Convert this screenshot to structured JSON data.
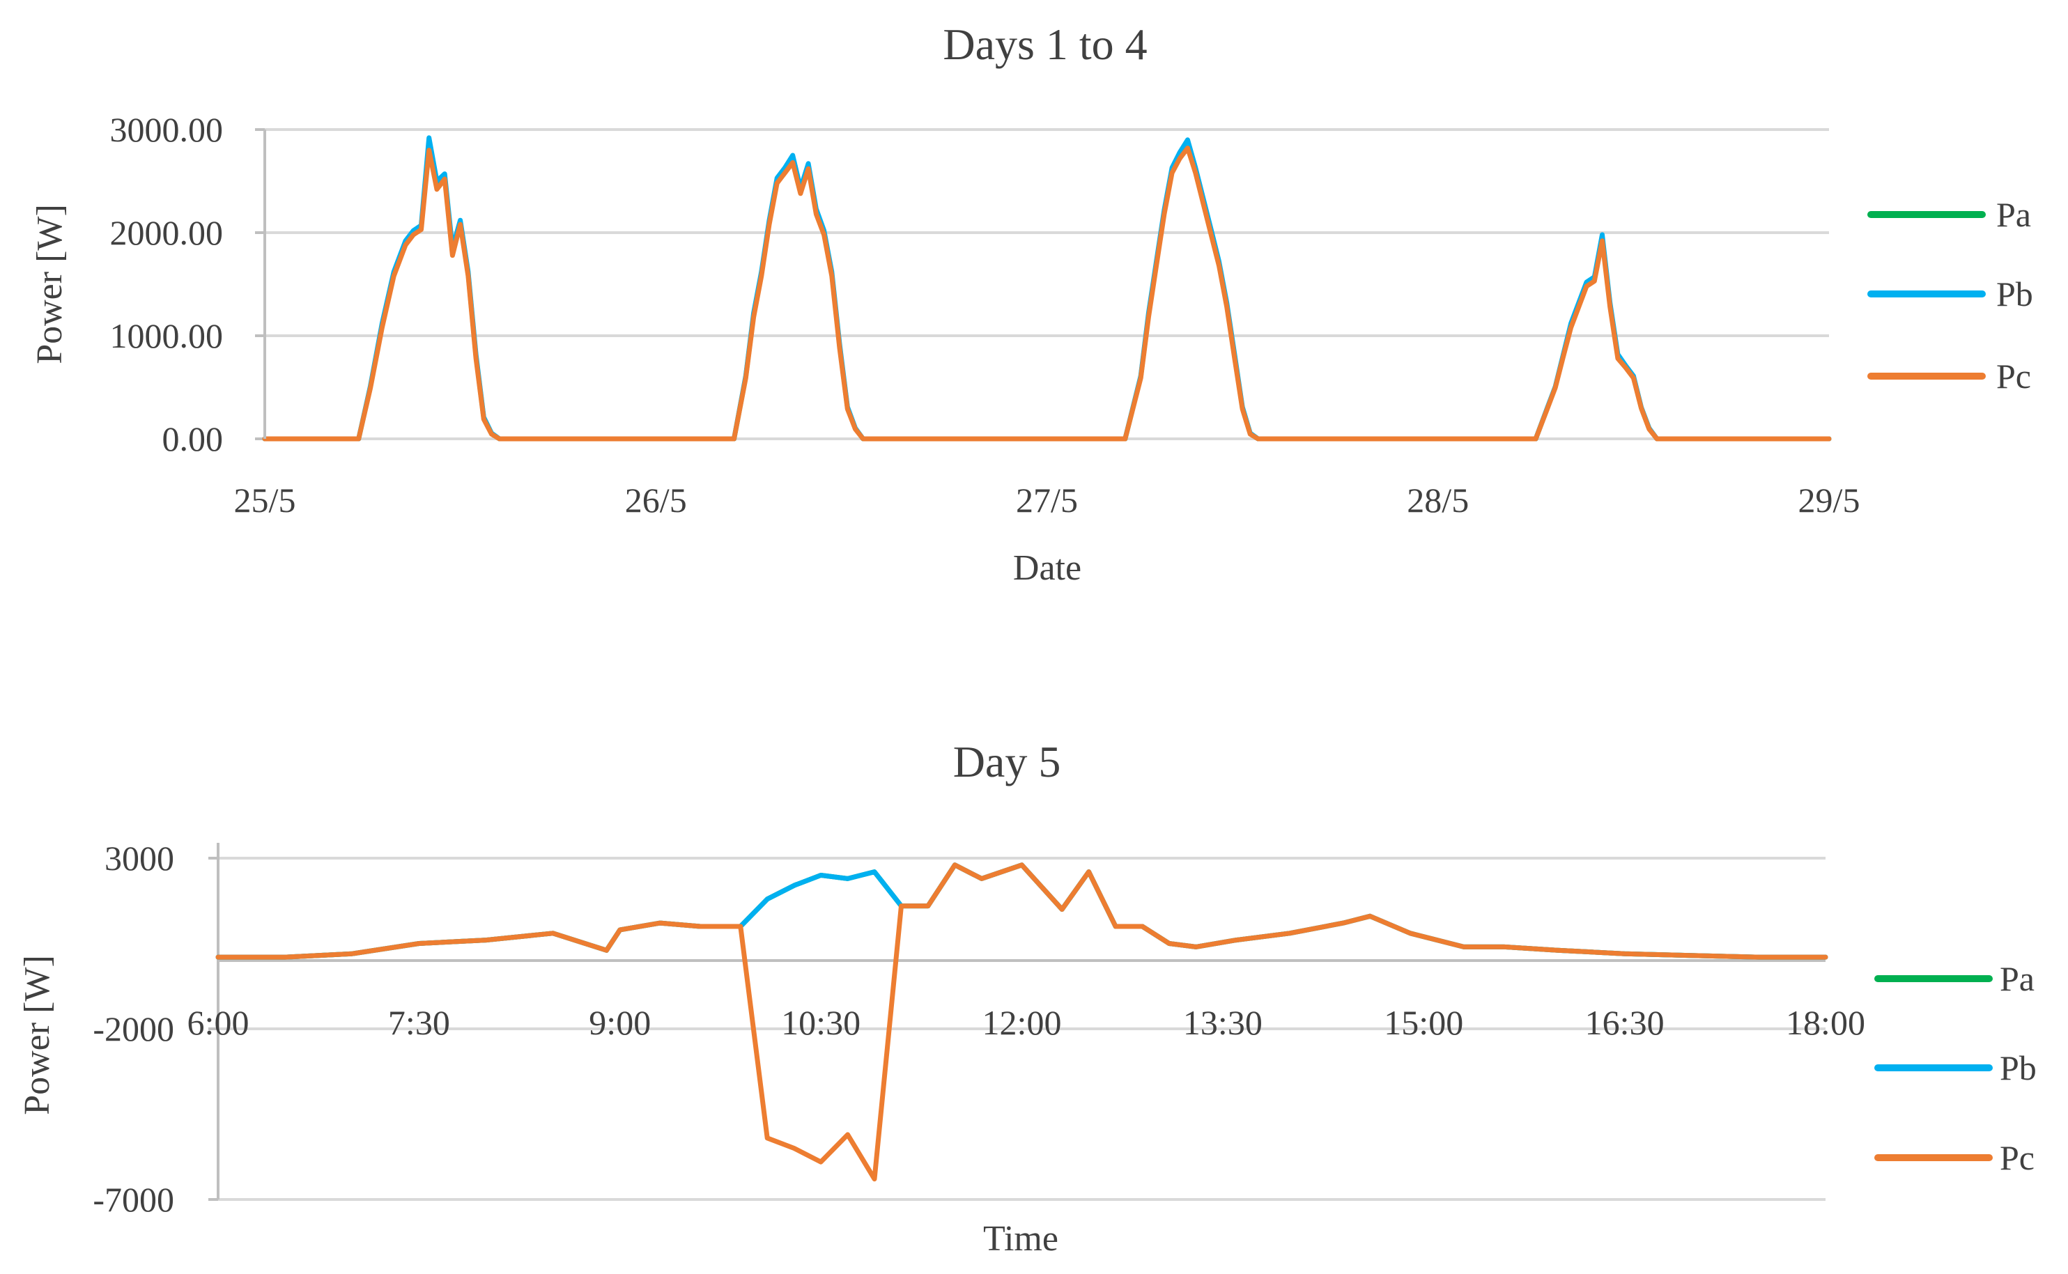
{
  "chart_data": [
    {
      "type": "line",
      "title": "Days 1 to 4",
      "xlabel": "Date",
      "ylabel": "Power [W]",
      "xlim": [
        0,
        4
      ],
      "ylim": [
        0,
        3000
      ],
      "grid": true,
      "legend_position": "right",
      "x_ticks": [
        {
          "value": 0,
          "label": "25/5"
        },
        {
          "value": 1,
          "label": "26/5"
        },
        {
          "value": 2,
          "label": "27/5"
        },
        {
          "value": 3,
          "label": "28/5"
        },
        {
          "value": 4,
          "label": "29/5"
        }
      ],
      "y_ticks": [
        {
          "value": 0,
          "label": "0.00"
        },
        {
          "value": 1000,
          "label": "1000.00"
        },
        {
          "value": 2000,
          "label": "2000.00"
        },
        {
          "value": 3000,
          "label": "3000.00"
        }
      ],
      "series": [
        {
          "name": "Pa",
          "color": "#00b050"
        },
        {
          "name": "Pb",
          "color": "#00b0f0"
        },
        {
          "name": "Pc",
          "color": "#ed7d31"
        }
      ],
      "x": [
        0,
        0.24,
        0.27,
        0.3,
        0.33,
        0.36,
        0.38,
        0.4,
        0.42,
        0.44,
        0.46,
        0.48,
        0.5,
        0.52,
        0.54,
        0.56,
        0.58,
        0.6,
        0.62,
        0.64,
        0.66,
        0.68,
        0.7,
        0.73,
        1.2,
        1.23,
        1.25,
        1.27,
        1.29,
        1.31,
        1.33,
        1.35,
        1.37,
        1.39,
        1.41,
        1.43,
        1.45,
        1.47,
        1.49,
        1.51,
        1.53,
        1.55,
        1.57,
        1.59,
        1.61,
        1.63,
        1.66,
        1.7,
        2.2,
        2.24,
        2.26,
        2.28,
        2.3,
        2.32,
        2.34,
        2.36,
        2.38,
        2.4,
        2.42,
        2.44,
        2.46,
        2.48,
        2.5,
        2.52,
        2.54,
        2.56,
        2.58,
        2.6,
        2.62,
        2.64,
        2.68,
        2.72,
        3.25,
        3.28,
        3.3,
        3.32,
        3.34,
        3.36,
        3.38,
        3.4,
        3.42,
        3.44,
        3.46,
        3.48,
        3.5,
        3.52,
        3.54,
        3.56,
        3.58,
        3.6,
        3.62,
        3.64,
        3.66,
        3.7,
        4
      ],
      "values": {
        "Pa": [
          0,
          0,
          500,
          1100,
          1600,
          1900,
          2000,
          2050,
          2850,
          2450,
          2550,
          1800,
          2100,
          1600,
          800,
          200,
          50,
          0,
          0,
          0,
          0,
          0,
          0,
          0,
          0,
          600,
          1200,
          1600,
          2100,
          2500,
          2600,
          2700,
          2400,
          2650,
          2200,
          2000,
          1600,
          900,
          300,
          100,
          0,
          0,
          0,
          0,
          0,
          0,
          0,
          0,
          0,
          600,
          1200,
          1700,
          2200,
          2600,
          2750,
          2850,
          2600,
          2300,
          2000,
          1700,
          1300,
          800,
          300,
          50,
          0,
          0,
          0,
          0,
          0,
          0,
          0,
          0,
          0,
          300,
          500,
          800,
          1100,
          1300,
          1500,
          1550,
          1950,
          1300,
          800,
          700,
          600,
          300,
          100,
          0,
          0,
          0,
          0,
          0,
          0,
          0,
          0
        ],
        "Pb": [
          0,
          0,
          510,
          1120,
          1620,
          1920,
          2020,
          2070,
          2920,
          2500,
          2570,
          1850,
          2120,
          1620,
          820,
          210,
          55,
          0,
          0,
          0,
          0,
          0,
          0,
          0,
          0,
          610,
          1220,
          1620,
          2120,
          2530,
          2630,
          2750,
          2430,
          2670,
          2230,
          2020,
          1620,
          920,
          310,
          105,
          0,
          0,
          0,
          0,
          0,
          0,
          0,
          0,
          0,
          610,
          1220,
          1720,
          2220,
          2630,
          2780,
          2900,
          2630,
          2330,
          2030,
          1720,
          1320,
          820,
          310,
          55,
          0,
          0,
          0,
          0,
          0,
          0,
          0,
          0,
          0,
          305,
          505,
          810,
          1120,
          1320,
          1520,
          1570,
          1980,
          1320,
          820,
          710,
          610,
          305,
          105,
          0,
          0,
          0,
          0,
          0,
          0,
          0,
          0
        ],
        "Pc": [
          0,
          0,
          490,
          1080,
          1580,
          1880,
          1980,
          2030,
          2800,
          2420,
          2520,
          1780,
          2080,
          1580,
          780,
          190,
          45,
          0,
          0,
          0,
          0,
          0,
          0,
          0,
          0,
          590,
          1180,
          1580,
          2080,
          2480,
          2580,
          2680,
          2380,
          2620,
          2180,
          1980,
          1580,
          880,
          290,
          95,
          0,
          0,
          0,
          0,
          0,
          0,
          0,
          0,
          0,
          590,
          1180,
          1680,
          2180,
          2580,
          2720,
          2820,
          2580,
          2280,
          1980,
          1680,
          1280,
          780,
          290,
          45,
          0,
          0,
          0,
          0,
          0,
          0,
          0,
          0,
          0,
          295,
          495,
          790,
          1080,
          1280,
          1480,
          1530,
          1920,
          1280,
          780,
          690,
          590,
          295,
          95,
          0,
          0,
          0,
          0,
          0,
          0,
          0,
          0
        ]
      }
    },
    {
      "type": "line",
      "title": "Day 5",
      "xlabel": "Time",
      "ylabel": "Power [W]",
      "xlim": [
        6,
        18
      ],
      "ylim": [
        -7000,
        3000
      ],
      "grid": true,
      "legend_position": "right",
      "x_ticks": [
        {
          "value": 6,
          "label": "6:00"
        },
        {
          "value": 7.5,
          "label": "7:30"
        },
        {
          "value": 9,
          "label": "9:00"
        },
        {
          "value": 10.5,
          "label": "10:30"
        },
        {
          "value": 12,
          "label": "12:00"
        },
        {
          "value": 13.5,
          "label": "13:30"
        },
        {
          "value": 15,
          "label": "15:00"
        },
        {
          "value": 16.5,
          "label": "16:30"
        },
        {
          "value": 18,
          "label": "18:00"
        }
      ],
      "y_ticks": [
        {
          "value": 3000,
          "label": "3000"
        },
        {
          "value": -2000,
          "label": "-2000"
        },
        {
          "value": -7000,
          "label": "-7000"
        }
      ],
      "series": [
        {
          "name": "Pa",
          "color": "#00b050"
        },
        {
          "name": "Pb",
          "color": "#00b0f0"
        },
        {
          "name": "Pc",
          "color": "#ed7d31"
        }
      ],
      "x": [
        6,
        6.5,
        7,
        7.5,
        8,
        8.5,
        8.9,
        9,
        9.3,
        9.6,
        9.9,
        10.1,
        10.3,
        10.5,
        10.7,
        10.9,
        11.1,
        11.3,
        11.5,
        11.7,
        12,
        12.3,
        12.5,
        12.7,
        12.9,
        13.1,
        13.3,
        13.6,
        14,
        14.4,
        14.6,
        14.9,
        15.3,
        15.6,
        16,
        16.5,
        17,
        17.5,
        18
      ],
      "values": {
        "Pa": [
          100,
          100,
          200,
          500,
          600,
          800,
          300,
          900,
          1100,
          1000,
          1000,
          1800,
          2200,
          2500,
          2400,
          2600,
          1600,
          1600,
          2800,
          2400,
          2800,
          1500,
          2600,
          1000,
          1000,
          500,
          400,
          600,
          800,
          1100,
          1300,
          800,
          400,
          400,
          300,
          200,
          150,
          100,
          100
        ],
        "Pb": [
          100,
          100,
          200,
          500,
          600,
          800,
          300,
          900,
          1100,
          1000,
          1000,
          1800,
          2200,
          2500,
          2400,
          2600,
          1600,
          1600,
          2800,
          2400,
          2800,
          1500,
          2600,
          1000,
          1000,
          500,
          400,
          600,
          800,
          1100,
          1300,
          800,
          400,
          400,
          300,
          200,
          150,
          100,
          100
        ],
        "Pc": [
          100,
          100,
          200,
          500,
          600,
          800,
          300,
          900,
          1100,
          1000,
          1000,
          -5200,
          -5500,
          -5900,
          -5100,
          -6400,
          1600,
          1600,
          2800,
          2400,
          2800,
          1500,
          2600,
          1000,
          1000,
          500,
          400,
          600,
          800,
          1100,
          1300,
          800,
          400,
          400,
          300,
          200,
          150,
          100,
          100
        ]
      }
    }
  ]
}
